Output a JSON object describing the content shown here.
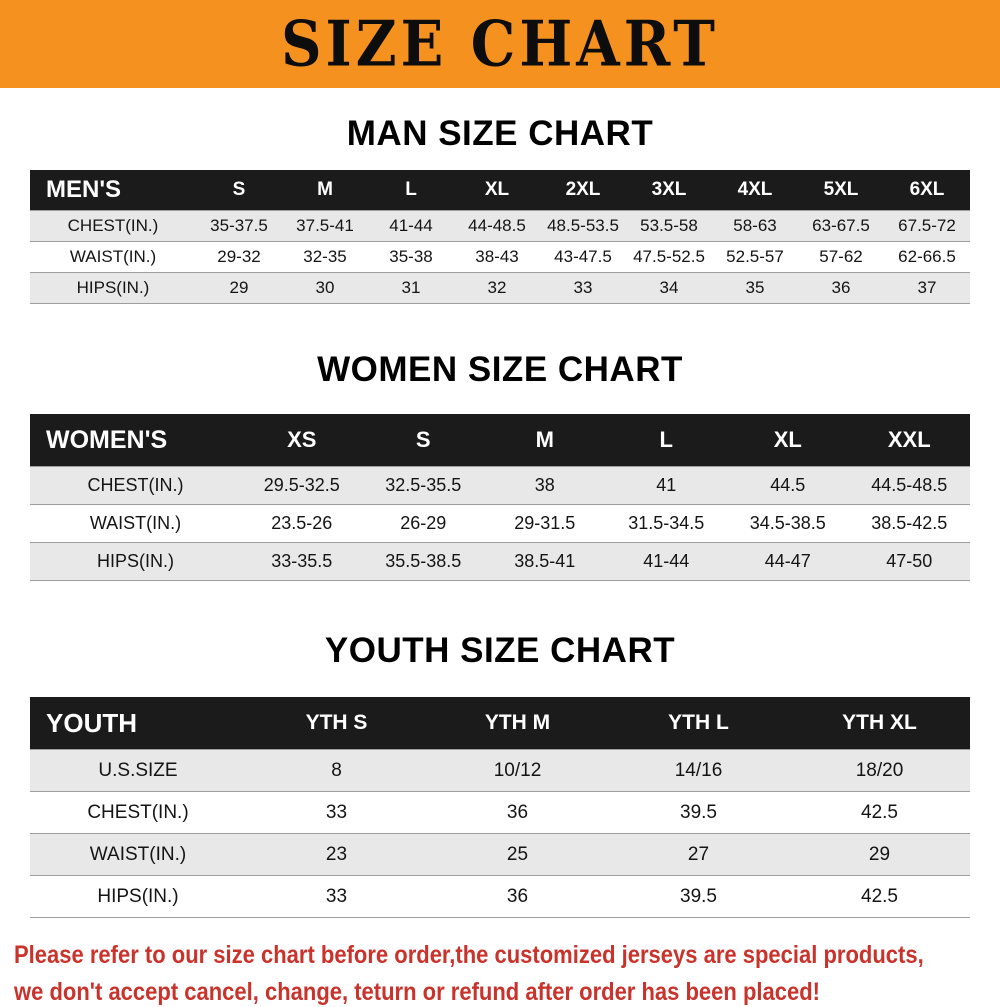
{
  "banner": {
    "title": "SIZE CHART"
  },
  "colors": {
    "banner_bg": "#f5911e",
    "table_header_bg": "#1b1b1b",
    "row_alt_bg": "#e8e8e8",
    "notice_text": "#c9332b"
  },
  "sections": [
    {
      "key": "men",
      "heading": "MAN SIZE CHART",
      "table": {
        "header": [
          "MEN'S",
          "S",
          "M",
          "L",
          "XL",
          "2XL",
          "3XL",
          "4XL",
          "5XL",
          "6XL"
        ],
        "rows": [
          [
            "CHEST(IN.)",
            "35-37.5",
            "37.5-41",
            "41-44",
            "44-48.5",
            "48.5-53.5",
            "53.5-58",
            "58-63",
            "63-67.5",
            "67.5-72"
          ],
          [
            "WAIST(IN.)",
            "29-32",
            "32-35",
            "35-38",
            "38-43",
            "43-47.5",
            "47.5-52.5",
            "52.5-57",
            "57-62",
            "62-66.5"
          ],
          [
            "HIPS(IN.)",
            "29",
            "30",
            "31",
            "32",
            "33",
            "34",
            "35",
            "36",
            "37"
          ]
        ]
      }
    },
    {
      "key": "women",
      "heading": "WOMEN SIZE CHART",
      "table": {
        "header": [
          "WOMEN'S",
          "XS",
          "S",
          "M",
          "L",
          "XL",
          "XXL"
        ],
        "rows": [
          [
            "CHEST(IN.)",
            "29.5-32.5",
            "32.5-35.5",
            "38",
            "41",
            "44.5",
            "44.5-48.5"
          ],
          [
            "WAIST(IN.)",
            "23.5-26",
            "26-29",
            "29-31.5",
            "31.5-34.5",
            "34.5-38.5",
            "38.5-42.5"
          ],
          [
            "HIPS(IN.)",
            "33-35.5",
            "35.5-38.5",
            "38.5-41",
            "41-44",
            "44-47",
            "47-50"
          ]
        ]
      }
    },
    {
      "key": "youth",
      "heading": "YOUTH SIZE CHART",
      "table": {
        "header": [
          "YOUTH",
          "YTH S",
          "YTH M",
          "YTH L",
          "YTH XL"
        ],
        "rows": [
          [
            "U.S.SIZE",
            "8",
            "10/12",
            "14/16",
            "18/20"
          ],
          [
            "CHEST(IN.)",
            "33",
            "36",
            "39.5",
            "42.5"
          ],
          [
            "WAIST(IN.)",
            "23",
            "25",
            "27",
            "29"
          ],
          [
            "HIPS(IN.)",
            "33",
            "36",
            "39.5",
            "42.5"
          ]
        ]
      }
    }
  ],
  "footer": {
    "lines": [
      "Please refer to our size chart before order,the customized jerseys are special products,",
      "we don't accept cancel, change, teturn or refund after order has been placed!"
    ]
  }
}
